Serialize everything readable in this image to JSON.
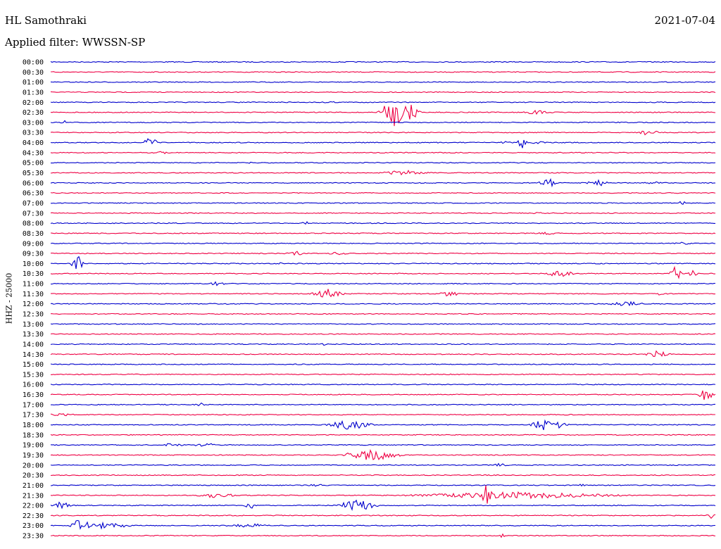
{
  "header": {
    "station": "HL Samothraki",
    "date": "2021-07-04",
    "filter": "Applied filter: WWSSN-SP"
  },
  "axis": {
    "ylabel": "HHZ - 25000"
  },
  "colors": {
    "blue": "#0000cc",
    "red": "#ee0044"
  },
  "chart_data": {
    "type": "line",
    "title": "HL Samothraki",
    "ylabel": "HHZ - 25000",
    "trace_colors": [
      "#0000cc",
      "#ee0044"
    ],
    "x_range_minutes": [
      0,
      30
    ],
    "rows": [
      {
        "label": "00:00",
        "events": []
      },
      {
        "label": "00:30",
        "events": []
      },
      {
        "label": "01:00",
        "events": []
      },
      {
        "label": "01:30",
        "events": []
      },
      {
        "label": "02:00",
        "events": [
          {
            "t": 12.6,
            "amp": 2,
            "dur": 0.4
          }
        ]
      },
      {
        "label": "02:30",
        "events": [
          {
            "t": 15.5,
            "amp": 22,
            "dur": 0.8
          },
          {
            "t": 16.2,
            "amp": 12,
            "dur": 0.6
          },
          {
            "t": 22.0,
            "amp": 3,
            "dur": 1.0
          }
        ]
      },
      {
        "label": "03:00",
        "events": [
          {
            "t": 0.6,
            "amp": 3,
            "dur": 0.3
          }
        ]
      },
      {
        "label": "03:30",
        "events": [
          {
            "t": 27.0,
            "amp": 5,
            "dur": 0.6
          }
        ]
      },
      {
        "label": "04:00",
        "events": [
          {
            "t": 4.5,
            "amp": 8,
            "dur": 0.4
          },
          {
            "t": 21.3,
            "amp": 9,
            "dur": 0.3
          },
          {
            "t": 20.6,
            "amp": 3,
            "dur": 0.4
          },
          {
            "t": 22.0,
            "amp": 2,
            "dur": 0.6
          }
        ]
      },
      {
        "label": "04:30",
        "events": [
          {
            "t": 5.0,
            "amp": 2,
            "dur": 0.6
          }
        ]
      },
      {
        "label": "05:00",
        "events": [
          {
            "t": 9.0,
            "amp": 1.5,
            "dur": 0.8
          }
        ]
      },
      {
        "label": "05:30",
        "events": [
          {
            "t": 16.0,
            "amp": 4,
            "dur": 1.4
          }
        ]
      },
      {
        "label": "06:00",
        "events": [
          {
            "t": 22.5,
            "amp": 6,
            "dur": 0.6
          },
          {
            "t": 24.7,
            "amp": 6,
            "dur": 0.6
          },
          {
            "t": 27.3,
            "amp": 2,
            "dur": 0.8
          }
        ]
      },
      {
        "label": "06:30",
        "events": []
      },
      {
        "label": "07:00",
        "events": [
          {
            "t": 28.5,
            "amp": 4,
            "dur": 0.2
          }
        ]
      },
      {
        "label": "07:30",
        "events": [
          {
            "t": 22.0,
            "amp": 2,
            "dur": 0.3
          }
        ]
      },
      {
        "label": "08:00",
        "events": [
          {
            "t": 11.5,
            "amp": 3,
            "dur": 0.3
          }
        ]
      },
      {
        "label": "08:30",
        "events": [
          {
            "t": 22.5,
            "amp": 2,
            "dur": 1.0
          }
        ]
      },
      {
        "label": "09:00",
        "events": [
          {
            "t": 28.5,
            "amp": 2,
            "dur": 0.6
          }
        ]
      },
      {
        "label": "09:30",
        "events": [
          {
            "t": 11.0,
            "amp": 4,
            "dur": 0.6
          },
          {
            "t": 13.0,
            "amp": 2,
            "dur": 0.8
          }
        ]
      },
      {
        "label": "10:00",
        "events": [
          {
            "t": 1.2,
            "amp": 18,
            "dur": 0.3
          },
          {
            "t": 10.3,
            "amp": 3,
            "dur": 0.3
          }
        ]
      },
      {
        "label": "10:30",
        "events": [
          {
            "t": 23.0,
            "amp": 5,
            "dur": 1.0
          },
          {
            "t": 28.2,
            "amp": 16,
            "dur": 0.3
          },
          {
            "t": 29.0,
            "amp": 5,
            "dur": 0.3
          }
        ]
      },
      {
        "label": "11:00",
        "events": [
          {
            "t": 7.5,
            "amp": 3,
            "dur": 0.6
          }
        ]
      },
      {
        "label": "11:30",
        "events": [
          {
            "t": 12.5,
            "amp": 7,
            "dur": 0.9
          },
          {
            "t": 18.0,
            "amp": 5,
            "dur": 0.6
          },
          {
            "t": 27.5,
            "amp": 3,
            "dur": 0.3
          }
        ]
      },
      {
        "label": "12:00",
        "events": [
          {
            "t": 26.0,
            "amp": 4,
            "dur": 1.0
          }
        ]
      },
      {
        "label": "12:30",
        "events": []
      },
      {
        "label": "13:00",
        "events": []
      },
      {
        "label": "13:30",
        "events": []
      },
      {
        "label": "14:00",
        "events": [
          {
            "t": 12.3,
            "amp": 2,
            "dur": 0.2
          }
        ]
      },
      {
        "label": "14:30",
        "events": [
          {
            "t": 27.4,
            "amp": 6,
            "dur": 0.7
          }
        ]
      },
      {
        "label": "15:00",
        "events": []
      },
      {
        "label": "15:30",
        "events": []
      },
      {
        "label": "16:00",
        "events": []
      },
      {
        "label": "16:30",
        "events": [
          {
            "t": 29.6,
            "amp": 12,
            "dur": 0.4
          }
        ]
      },
      {
        "label": "17:00",
        "events": [
          {
            "t": 6.8,
            "amp": 3,
            "dur": 0.4
          }
        ]
      },
      {
        "label": "17:30",
        "events": [
          {
            "t": 0.5,
            "amp": 2,
            "dur": 1.0
          }
        ]
      },
      {
        "label": "18:00",
        "events": [
          {
            "t": 13.5,
            "amp": 7,
            "dur": 1.4
          },
          {
            "t": 22.5,
            "amp": 10,
            "dur": 1.0
          }
        ]
      },
      {
        "label": "18:30",
        "events": []
      },
      {
        "label": "19:00",
        "events": [
          {
            "t": 5.5,
            "amp": 3,
            "dur": 0.8
          },
          {
            "t": 7.0,
            "amp": 3,
            "dur": 0.8
          }
        ]
      },
      {
        "label": "19:30",
        "events": [
          {
            "t": 14.5,
            "amp": 9,
            "dur": 1.6
          }
        ]
      },
      {
        "label": "20:00",
        "events": [
          {
            "t": 20.3,
            "amp": 3,
            "dur": 0.4
          }
        ]
      },
      {
        "label": "20:30",
        "events": []
      },
      {
        "label": "21:00",
        "events": [
          {
            "t": 12.0,
            "amp": 2,
            "dur": 0.6
          },
          {
            "t": 24.0,
            "amp": 3,
            "dur": 0.2
          }
        ]
      },
      {
        "label": "21:30",
        "events": [
          {
            "t": 19.7,
            "amp": 18,
            "dur": 0.3
          },
          {
            "t": 21.0,
            "amp": 5,
            "dur": 6.0
          },
          {
            "t": 7.5,
            "amp": 4,
            "dur": 1.2
          }
        ]
      },
      {
        "label": "22:00",
        "events": [
          {
            "t": 0.5,
            "amp": 7,
            "dur": 0.5
          },
          {
            "t": 9.0,
            "amp": 7,
            "dur": 0.3
          },
          {
            "t": 13.8,
            "amp": 9,
            "dur": 1.2
          }
        ]
      },
      {
        "label": "22:30",
        "events": [
          {
            "t": 29.8,
            "amp": 5,
            "dur": 0.3
          }
        ]
      },
      {
        "label": "23:00",
        "events": [
          {
            "t": 1.4,
            "amp": 12,
            "dur": 0.6
          },
          {
            "t": 2.5,
            "amp": 5,
            "dur": 1.4
          },
          {
            "t": 9.0,
            "amp": 3,
            "dur": 1.5
          }
        ]
      },
      {
        "label": "23:30",
        "events": [
          {
            "t": 20.4,
            "amp": 4,
            "dur": 0.2
          }
        ]
      }
    ]
  }
}
